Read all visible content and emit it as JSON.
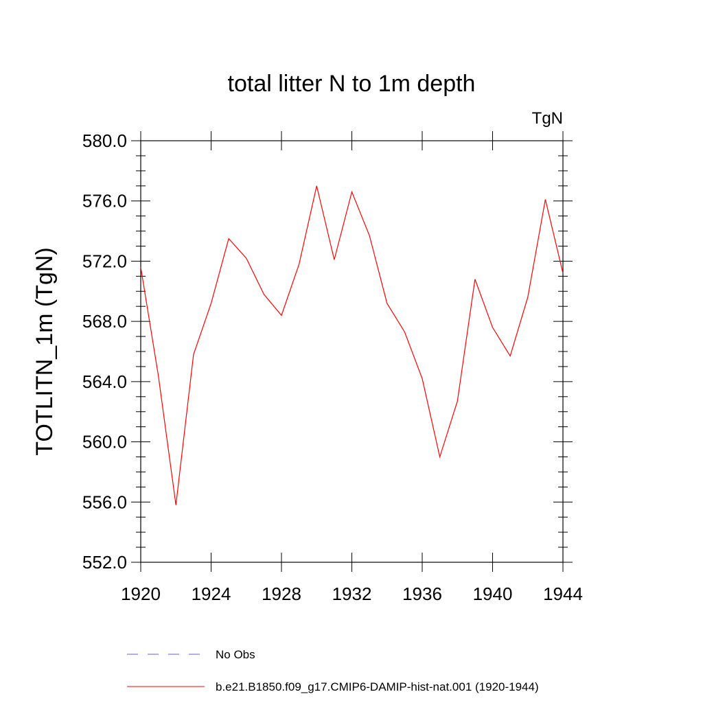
{
  "chart_data": {
    "type": "line",
    "title": "total litter N to 1m depth",
    "units_label": "TgN",
    "ylabel": "TOTLITN_1m  (TgN)",
    "xlabel": "",
    "xlim": [
      1920,
      1944
    ],
    "ylim": [
      552,
      580
    ],
    "x_ticks": [
      1920,
      1924,
      1928,
      1932,
      1936,
      1940,
      1944
    ],
    "x_tick_labels": [
      "1920",
      "1924",
      "1928",
      "1932",
      "1936",
      "1940",
      "1944"
    ],
    "y_ticks": [
      552,
      556,
      560,
      564,
      568,
      572,
      576,
      580
    ],
    "y_tick_labels": [
      "552.0",
      "556.0",
      "560.0",
      "564.0",
      "568.0",
      "572.0",
      "576.0",
      "580.0"
    ],
    "grid": false,
    "legend_placement": "bottom",
    "series": [
      {
        "name": "b.e21.B1850.f09_g17.CMIP6-DAMIP-hist-nat.001 (1920-1944)",
        "color": "#ff0000",
        "style": "solid",
        "x": [
          1920,
          1921,
          1922,
          1923,
          1924,
          1925,
          1926,
          1927,
          1928,
          1929,
          1930,
          1931,
          1932,
          1933,
          1934,
          1935,
          1936,
          1937,
          1938,
          1939,
          1940,
          1941,
          1942,
          1943,
          1944
        ],
        "values": [
          571.6,
          564.4,
          555.8,
          565.8,
          569.2,
          573.5,
          572.2,
          569.8,
          568.4,
          571.8,
          577.0,
          572.1,
          576.6,
          573.7,
          569.2,
          567.3,
          564.2,
          559.0,
          562.7,
          570.8,
          567.6,
          565.7,
          569.6,
          576.1,
          571.2
        ]
      }
    ],
    "legend": [
      {
        "label": "No Obs",
        "color": "#6a5acd",
        "style": "dashed"
      },
      {
        "label": "b.e21.B1850.f09_g17.CMIP6-DAMIP-hist-nat.001 (1920-1944)",
        "color": "#ff0000",
        "style": "solid"
      }
    ]
  }
}
